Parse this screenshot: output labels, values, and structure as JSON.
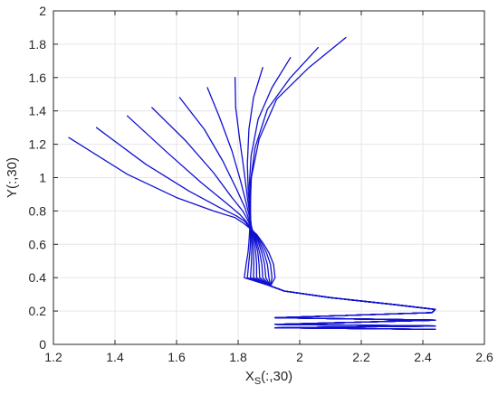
{
  "chart_data": {
    "type": "line",
    "xlabel": "X",
    "xlabel_sub": "S",
    "xlabel_suffix": "(:,30)",
    "ylabel": "Y(:,30)",
    "xlim": [
      1.2,
      2.6
    ],
    "ylim": [
      0,
      2
    ],
    "x_ticks": [
      1.2,
      1.4,
      1.6,
      1.8,
      2.0,
      2.2,
      2.4,
      2.6
    ],
    "x_tick_labels": [
      "1.2",
      "1.4",
      "1.6",
      "1.8",
      "2",
      "2.2",
      "2.4",
      "2.6"
    ],
    "y_ticks": [
      0,
      0.2,
      0.4,
      0.6,
      0.8,
      1.0,
      1.2,
      1.4,
      1.6,
      1.8,
      2.0
    ],
    "y_tick_labels": [
      "0",
      "0.2",
      "0.4",
      "0.6",
      "0.8",
      "1",
      "1.2",
      "1.4",
      "1.6",
      "1.8",
      "2"
    ],
    "grid": true,
    "line_color": "#1010d0",
    "grid_color": "#e6e6e6",
    "axis_color": "#262626",
    "series": [
      {
        "x": [
          1.25,
          1.44,
          1.6,
          1.72,
          1.79,
          1.815,
          1.835,
          1.86,
          1.88,
          1.9,
          1.915,
          1.92,
          1.905,
          1.95,
          2.1,
          2.3,
          2.44,
          2.43,
          1.92,
          2.44,
          1.92,
          2.44,
          1.92,
          2.44
        ],
        "y": [
          1.24,
          1.02,
          0.88,
          0.8,
          0.76,
          0.73,
          0.7,
          0.66,
          0.61,
          0.55,
          0.48,
          0.4,
          0.35,
          0.32,
          0.28,
          0.24,
          0.21,
          0.19,
          0.16,
          0.145,
          0.12,
          0.11,
          0.1,
          0.09
        ]
      },
      {
        "x": [
          1.34,
          1.5,
          1.64,
          1.74,
          1.795,
          1.82,
          1.838,
          1.858,
          1.875,
          1.892,
          1.905,
          1.91,
          1.905,
          1.95,
          2.1,
          2.3,
          2.44,
          2.43,
          1.92,
          2.44,
          1.92,
          2.44,
          1.92,
          2.44
        ],
        "y": [
          1.3,
          1.08,
          0.92,
          0.82,
          0.77,
          0.74,
          0.7,
          0.66,
          0.61,
          0.55,
          0.48,
          0.4,
          0.35,
          0.32,
          0.28,
          0.24,
          0.21,
          0.19,
          0.16,
          0.145,
          0.12,
          0.11,
          0.1,
          0.09
        ]
      },
      {
        "x": [
          1.44,
          1.57,
          1.68,
          1.76,
          1.805,
          1.825,
          1.84,
          1.856,
          1.87,
          1.884,
          1.895,
          1.9,
          1.905,
          1.95,
          2.1,
          2.3,
          2.44,
          2.43,
          1.92,
          2.44,
          1.92,
          2.44,
          1.92,
          2.44
        ],
        "y": [
          1.37,
          1.15,
          0.97,
          0.85,
          0.78,
          0.74,
          0.7,
          0.66,
          0.61,
          0.55,
          0.48,
          0.4,
          0.35,
          0.32,
          0.28,
          0.24,
          0.21,
          0.19,
          0.16,
          0.145,
          0.12,
          0.11,
          0.1,
          0.09
        ]
      },
      {
        "x": [
          1.52,
          1.63,
          1.72,
          1.78,
          1.815,
          1.83,
          1.842,
          1.854,
          1.866,
          1.877,
          1.886,
          1.89,
          1.905,
          1.95,
          2.1,
          2.3,
          2.44,
          2.43,
          1.92,
          2.44,
          1.92,
          2.44,
          1.92,
          2.44
        ],
        "y": [
          1.42,
          1.22,
          1.03,
          0.88,
          0.8,
          0.75,
          0.7,
          0.66,
          0.61,
          0.55,
          0.48,
          0.4,
          0.35,
          0.32,
          0.28,
          0.24,
          0.21,
          0.19,
          0.16,
          0.145,
          0.12,
          0.11,
          0.1,
          0.09
        ]
      },
      {
        "x": [
          1.61,
          1.69,
          1.75,
          1.795,
          1.822,
          1.833,
          1.843,
          1.852,
          1.861,
          1.87,
          1.877,
          1.88,
          1.905,
          1.95,
          2.1,
          2.3,
          2.44,
          2.43,
          1.92,
          2.44,
          1.92,
          2.44,
          1.92,
          2.44
        ],
        "y": [
          1.48,
          1.29,
          1.1,
          0.93,
          0.82,
          0.76,
          0.7,
          0.66,
          0.61,
          0.55,
          0.48,
          0.4,
          0.35,
          0.32,
          0.28,
          0.24,
          0.21,
          0.19,
          0.16,
          0.145,
          0.12,
          0.11,
          0.1,
          0.09
        ]
      },
      {
        "x": [
          1.7,
          1.74,
          1.78,
          1.808,
          1.826,
          1.835,
          1.843,
          1.85,
          1.857,
          1.864,
          1.868,
          1.87,
          1.905,
          1.95,
          2.1,
          2.3,
          2.44,
          2.43,
          1.92,
          2.44,
          1.92,
          2.44,
          1.92,
          2.44
        ],
        "y": [
          1.54,
          1.36,
          1.16,
          0.98,
          0.85,
          0.78,
          0.71,
          0.66,
          0.61,
          0.55,
          0.48,
          0.4,
          0.35,
          0.32,
          0.28,
          0.24,
          0.21,
          0.19,
          0.16,
          0.145,
          0.12,
          0.11,
          0.1,
          0.09
        ]
      },
      {
        "x": [
          1.79,
          1.792,
          1.805,
          1.82,
          1.83,
          1.837,
          1.843,
          1.848,
          1.853,
          1.857,
          1.86,
          1.86,
          1.905,
          1.95,
          2.1,
          2.3,
          2.44,
          2.43,
          1.92,
          2.44,
          1.92,
          2.44,
          1.92,
          2.44
        ],
        "y": [
          1.6,
          1.42,
          1.23,
          1.03,
          0.88,
          0.79,
          0.71,
          0.66,
          0.61,
          0.55,
          0.48,
          0.4,
          0.35,
          0.32,
          0.28,
          0.24,
          0.21,
          0.19,
          0.16,
          0.145,
          0.12,
          0.11,
          0.1,
          0.09
        ]
      },
      {
        "x": [
          1.88,
          1.85,
          1.835,
          1.83,
          1.833,
          1.838,
          1.842,
          1.845,
          1.848,
          1.85,
          1.851,
          1.85,
          1.905,
          1.95,
          2.1,
          2.3,
          2.44,
          2.43,
          1.92,
          2.44,
          1.92,
          2.44,
          1.92,
          2.44
        ],
        "y": [
          1.66,
          1.48,
          1.29,
          1.08,
          0.91,
          0.81,
          0.72,
          0.66,
          0.61,
          0.55,
          0.48,
          0.4,
          0.35,
          0.32,
          0.28,
          0.24,
          0.21,
          0.19,
          0.16,
          0.145,
          0.12,
          0.11,
          0.1,
          0.09
        ]
      },
      {
        "x": [
          1.97,
          1.91,
          1.865,
          1.842,
          1.836,
          1.839,
          1.841,
          1.843,
          1.844,
          1.844,
          1.843,
          1.84,
          1.905,
          1.95,
          2.1,
          2.3,
          2.44,
          2.43,
          1.92,
          2.44,
          1.92,
          2.44,
          1.92,
          2.44
        ],
        "y": [
          1.72,
          1.54,
          1.35,
          1.13,
          0.94,
          0.82,
          0.72,
          0.66,
          0.61,
          0.55,
          0.48,
          0.4,
          0.35,
          0.32,
          0.28,
          0.24,
          0.21,
          0.19,
          0.16,
          0.145,
          0.12,
          0.11,
          0.1,
          0.09
        ]
      },
      {
        "x": [
          2.06,
          1.97,
          1.895,
          1.855,
          1.84,
          1.84,
          1.84,
          1.84,
          1.84,
          1.838,
          1.834,
          1.83,
          1.905,
          1.95,
          2.1,
          2.3,
          2.44,
          2.43,
          1.92,
          2.44,
          1.92,
          2.44,
          1.92,
          2.44
        ],
        "y": [
          1.78,
          1.6,
          1.41,
          1.18,
          0.97,
          0.84,
          0.73,
          0.67,
          0.61,
          0.55,
          0.48,
          0.4,
          0.35,
          0.32,
          0.28,
          0.24,
          0.21,
          0.19,
          0.16,
          0.145,
          0.12,
          0.11,
          0.1,
          0.09
        ]
      },
      {
        "x": [
          2.15,
          2.03,
          1.925,
          1.868,
          1.843,
          1.84,
          1.839,
          1.837,
          1.835,
          1.832,
          1.826,
          1.82,
          1.905,
          1.95,
          2.1,
          2.3,
          2.44,
          2.43,
          1.92,
          2.44,
          1.92,
          2.44,
          1.92,
          2.44
        ],
        "y": [
          1.84,
          1.66,
          1.47,
          1.23,
          1.0,
          0.86,
          0.74,
          0.67,
          0.61,
          0.55,
          0.48,
          0.4,
          0.35,
          0.32,
          0.28,
          0.24,
          0.21,
          0.19,
          0.16,
          0.145,
          0.12,
          0.11,
          0.1,
          0.09
        ]
      }
    ]
  }
}
